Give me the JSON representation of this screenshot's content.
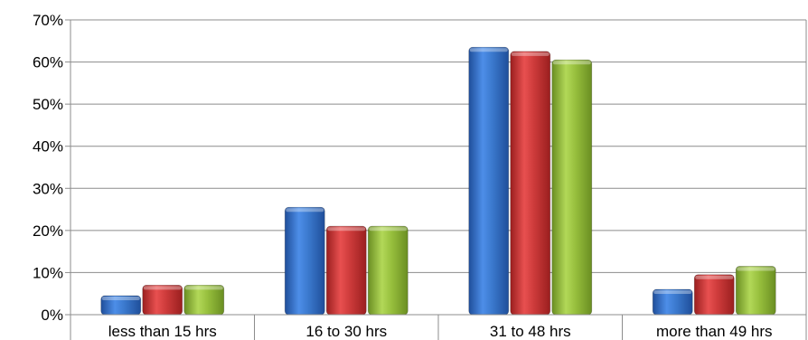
{
  "chart_data": {
    "type": "bar",
    "categories": [
      "less than 15 hrs",
      "16 to 30 hrs",
      "31 to 48 hrs",
      "more than 49 hrs"
    ],
    "series": [
      {
        "values": [
          4.5,
          25.5,
          63.5,
          6
        ],
        "color": "#3a78cc"
      },
      {
        "values": [
          7,
          21,
          62.5,
          9.5
        ],
        "color": "#cc3a3a"
      },
      {
        "values": [
          7,
          21,
          60.5,
          11.5
        ],
        "color": "#96be3c"
      }
    ],
    "ylim": [
      0,
      70
    ],
    "yticks": [
      "0%",
      "10%",
      "20%",
      "30%",
      "40%",
      "50%",
      "60%",
      "70%"
    ],
    "grid": true,
    "title": "",
    "xlabel": "",
    "ylabel": ""
  }
}
